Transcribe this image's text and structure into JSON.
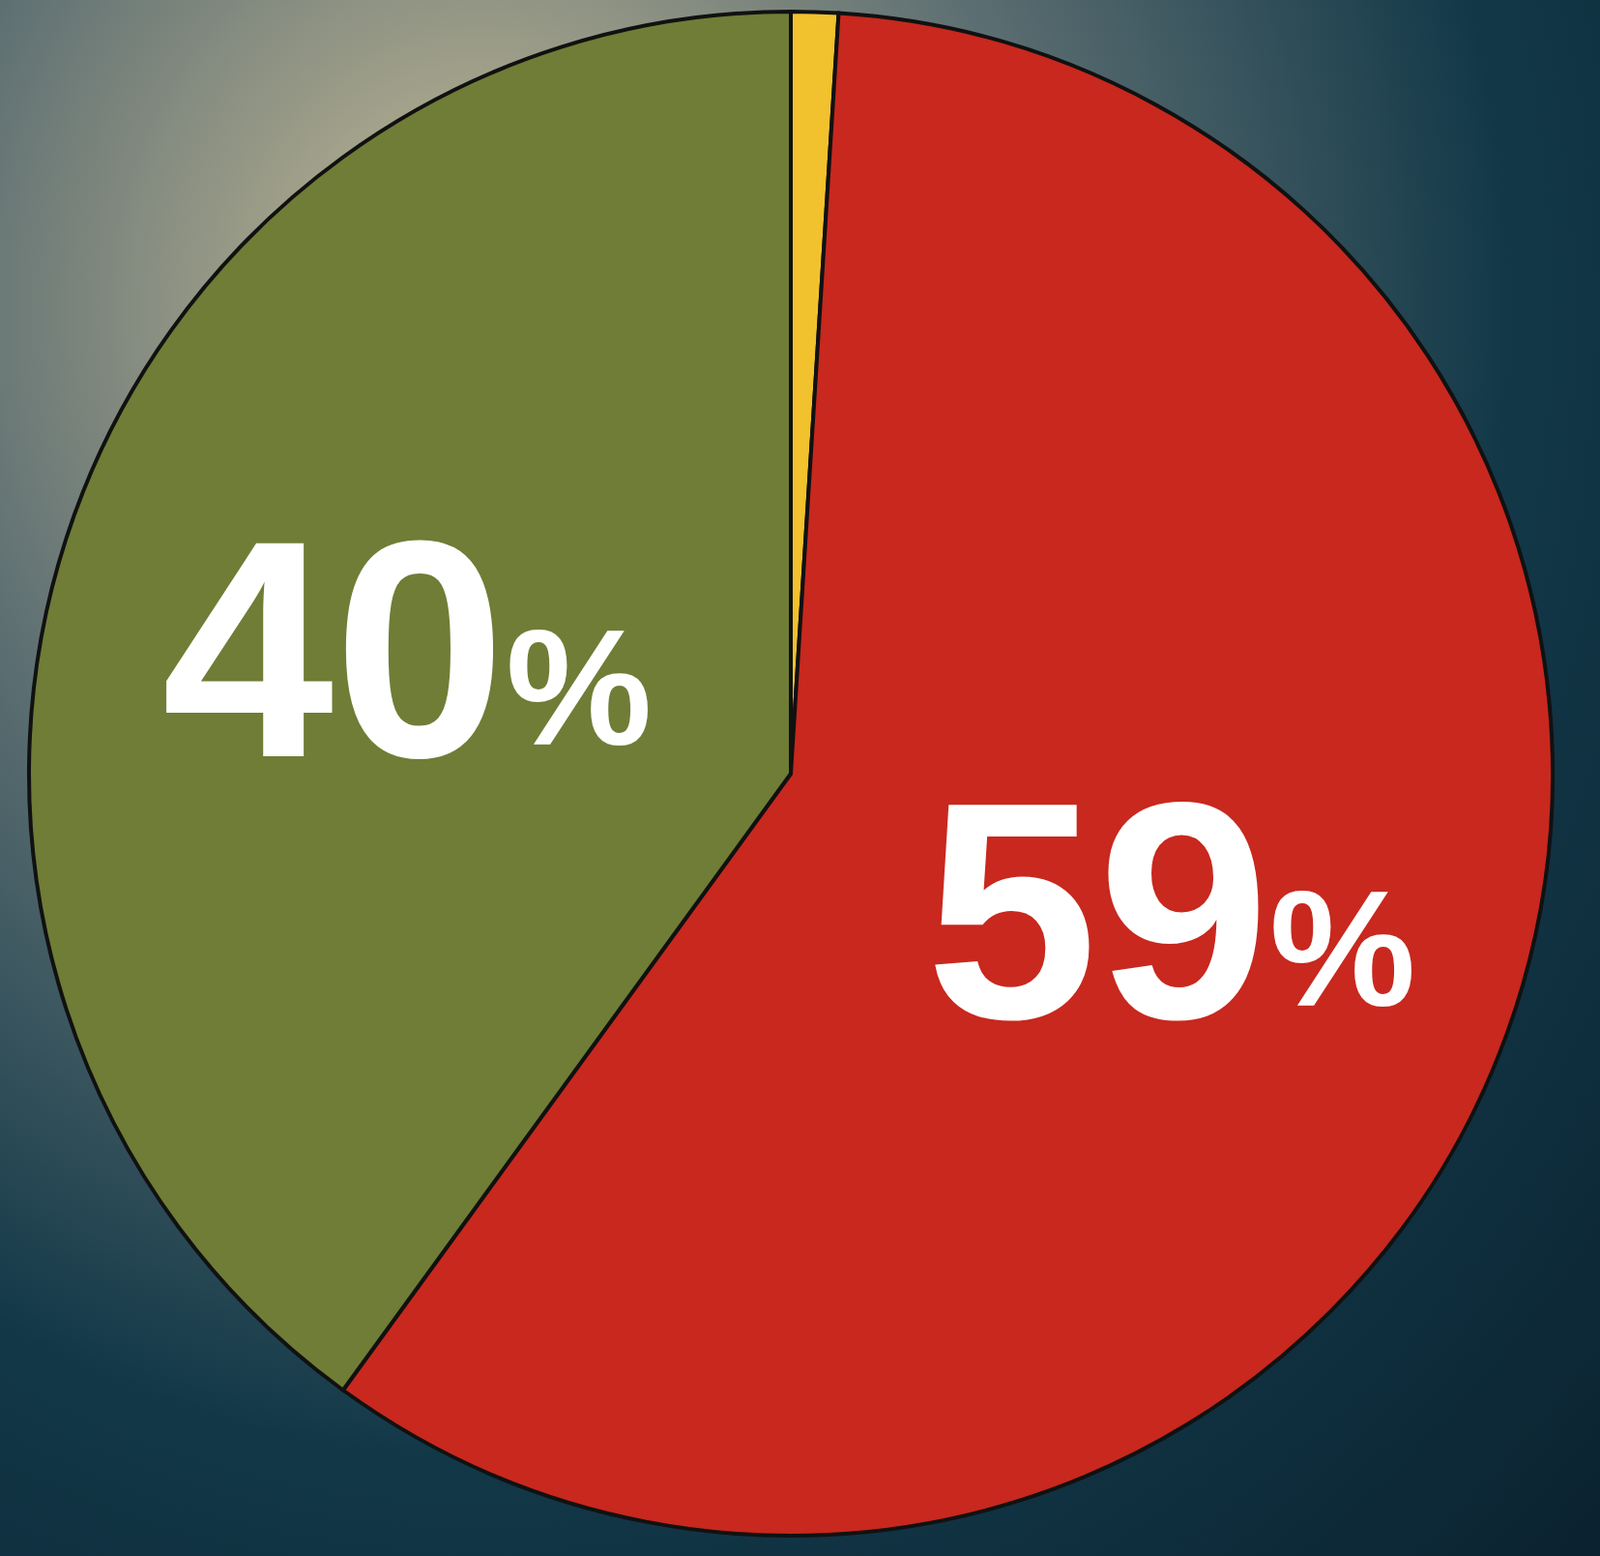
{
  "chart_data": {
    "type": "pie",
    "values": [
      40,
      59,
      1
    ],
    "value_labels": [
      "40%",
      "59%",
      null
    ],
    "colors": [
      "#6f7d36",
      "#c8281e",
      "#f2c12e"
    ],
    "data_labels": true
  }
}
